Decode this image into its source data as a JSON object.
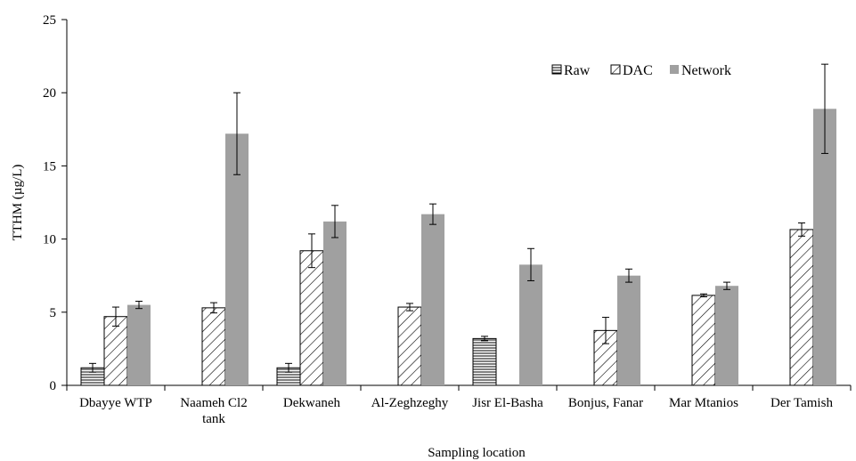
{
  "chart_data": {
    "type": "bar",
    "title": "",
    "xlabel": "Sampling location",
    "ylabel": "TTHM (µg/L)",
    "ylim": [
      0,
      25
    ],
    "yticks": [
      0,
      5,
      10,
      15,
      20,
      25
    ],
    "grid": false,
    "legend_position": "top-right",
    "categories": [
      [
        "Dbayye WTP"
      ],
      [
        "Naameh Cl2",
        "tank"
      ],
      [
        "Dekwaneh"
      ],
      [
        "Al-Zeghzeghy"
      ],
      [
        "Jisr El-Basha"
      ],
      [
        "Bonjus, Fanar"
      ],
      [
        "Mar Mtanios"
      ],
      [
        "Der Tamish"
      ]
    ],
    "series": [
      {
        "name": "Raw",
        "pattern": "horizontal-lines",
        "values": [
          1.2,
          null,
          1.2,
          null,
          3.2,
          null,
          null,
          null
        ],
        "errors": [
          0.3,
          null,
          0.3,
          null,
          0.15,
          null,
          null,
          null
        ]
      },
      {
        "name": "DAC",
        "pattern": "diagonal-hatch",
        "values": [
          4.7,
          5.3,
          9.2,
          5.35,
          null,
          3.75,
          6.15,
          10.65
        ],
        "errors": [
          0.65,
          0.35,
          1.15,
          0.25,
          null,
          0.9,
          0.1,
          0.45
        ]
      },
      {
        "name": "Network",
        "pattern": "solid",
        "color": "#a0a0a0",
        "values": [
          5.5,
          17.2,
          11.2,
          11.7,
          8.25,
          7.5,
          6.8,
          18.9
        ],
        "errors": [
          0.25,
          2.8,
          1.1,
          0.7,
          1.1,
          0.45,
          0.25,
          3.05
        ]
      }
    ]
  }
}
